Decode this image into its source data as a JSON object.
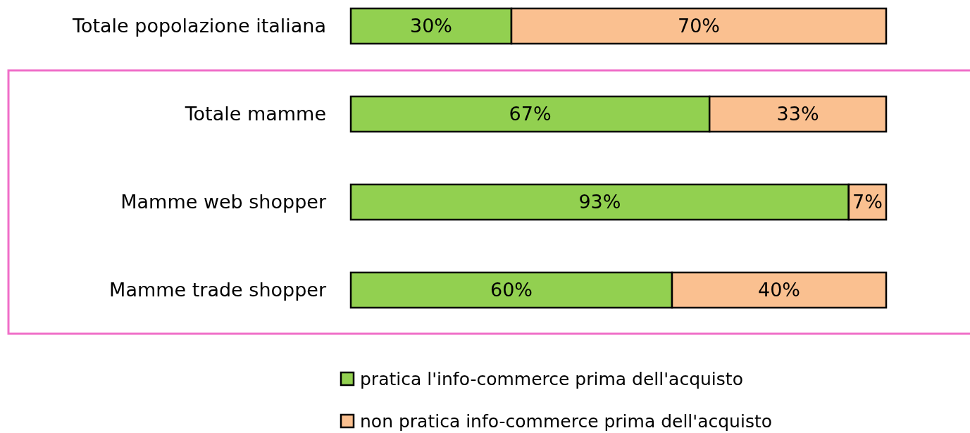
{
  "chart_data": {
    "type": "bar",
    "orientation": "horizontal",
    "stacked": true,
    "categories": [
      "Totale popolazione italiana",
      "Totale mamme",
      "Mamme web shopper",
      "Mamme trade shopper"
    ],
    "series": [
      {
        "name": "pratica l'info-commerce prima dell'acquisto",
        "color": "#92d050",
        "values": [
          30,
          67,
          93,
          60
        ],
        "value_labels": [
          "30%",
          "67%",
          "93%",
          "60%"
        ]
      },
      {
        "name": "non pratica info-commerce prima dell'acquisto",
        "color": "#fac090",
        "values": [
          70,
          33,
          7,
          40
        ],
        "value_labels": [
          "70%",
          "33%",
          "7%",
          "40%"
        ]
      }
    ],
    "legend": "bottom"
  }
}
